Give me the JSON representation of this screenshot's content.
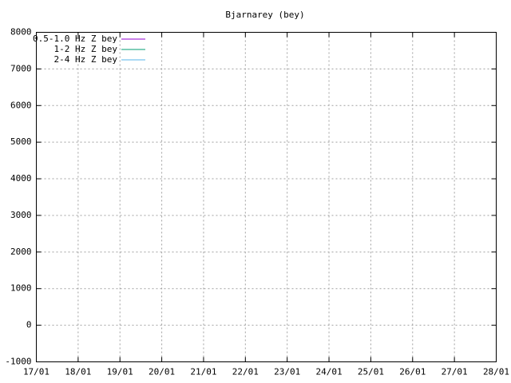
{
  "chart_data": {
    "type": "line",
    "title": "Bjarnarey (bey)",
    "x": [
      "17/01",
      "18/01",
      "19/01",
      "20/01",
      "21/01",
      "22/01",
      "23/01",
      "24/01",
      "25/01",
      "26/01",
      "27/01",
      "28/01"
    ],
    "series": [
      {
        "name": "0.5-1.0 Hz Z bey",
        "color": "#9400d3",
        "values": [
          null,
          null,
          null,
          null,
          null,
          null,
          null,
          null,
          null,
          null,
          null,
          null
        ]
      },
      {
        "name": "1-2 Hz Z bey",
        "color": "#009e73",
        "values": [
          null,
          null,
          null,
          null,
          null,
          null,
          null,
          null,
          null,
          null,
          null,
          null
        ]
      },
      {
        "name": "2-4 Hz Z bey",
        "color": "#56b4e9",
        "values": [
          null,
          null,
          null,
          null,
          null,
          null,
          null,
          null,
          null,
          null,
          null,
          null
        ]
      }
    ],
    "ylim": [
      -1000,
      8000
    ],
    "yticks": [
      -1000,
      0,
      1000,
      2000,
      3000,
      4000,
      5000,
      6000,
      7000,
      8000
    ],
    "grid": true,
    "legend": "top-left"
  }
}
